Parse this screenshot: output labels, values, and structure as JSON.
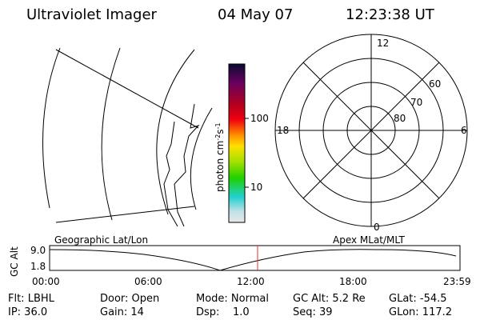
{
  "header": {
    "instrument": "Ultraviolet Imager",
    "date": "04 May 07",
    "time": "12:23:38 UT"
  },
  "colorbar": {
    "ticks": [
      "100",
      "10"
    ],
    "unit": {
      "base": "photon cm",
      "exp1": "-2",
      "mid": "s",
      "exp2": "-1"
    }
  },
  "polar": {
    "mlt_labels": [
      "12",
      "18",
      "6",
      "0"
    ],
    "mlat_labels": [
      "60",
      "70",
      "80"
    ]
  },
  "timeline": {
    "left_title": "Geographic Lat/Lon",
    "right_title": "Apex MLat/MLT",
    "axis_label": "GC Alt",
    "yticks": [
      "9.0",
      "1.8"
    ],
    "xticks": [
      "00:00",
      "06:00",
      "12:00",
      "18:00",
      "23:59"
    ]
  },
  "status": {
    "rows": [
      [
        "Flt: LBHL",
        "Door: Open",
        "Mode: Normal",
        "GC Alt: 5.2 Re",
        "GLat: -54.5"
      ],
      [
        "IP: 36.0",
        "Gain: 14",
        "Dsp:    1.0",
        "Seq: 39",
        "GLon: 117.2"
      ]
    ]
  }
}
